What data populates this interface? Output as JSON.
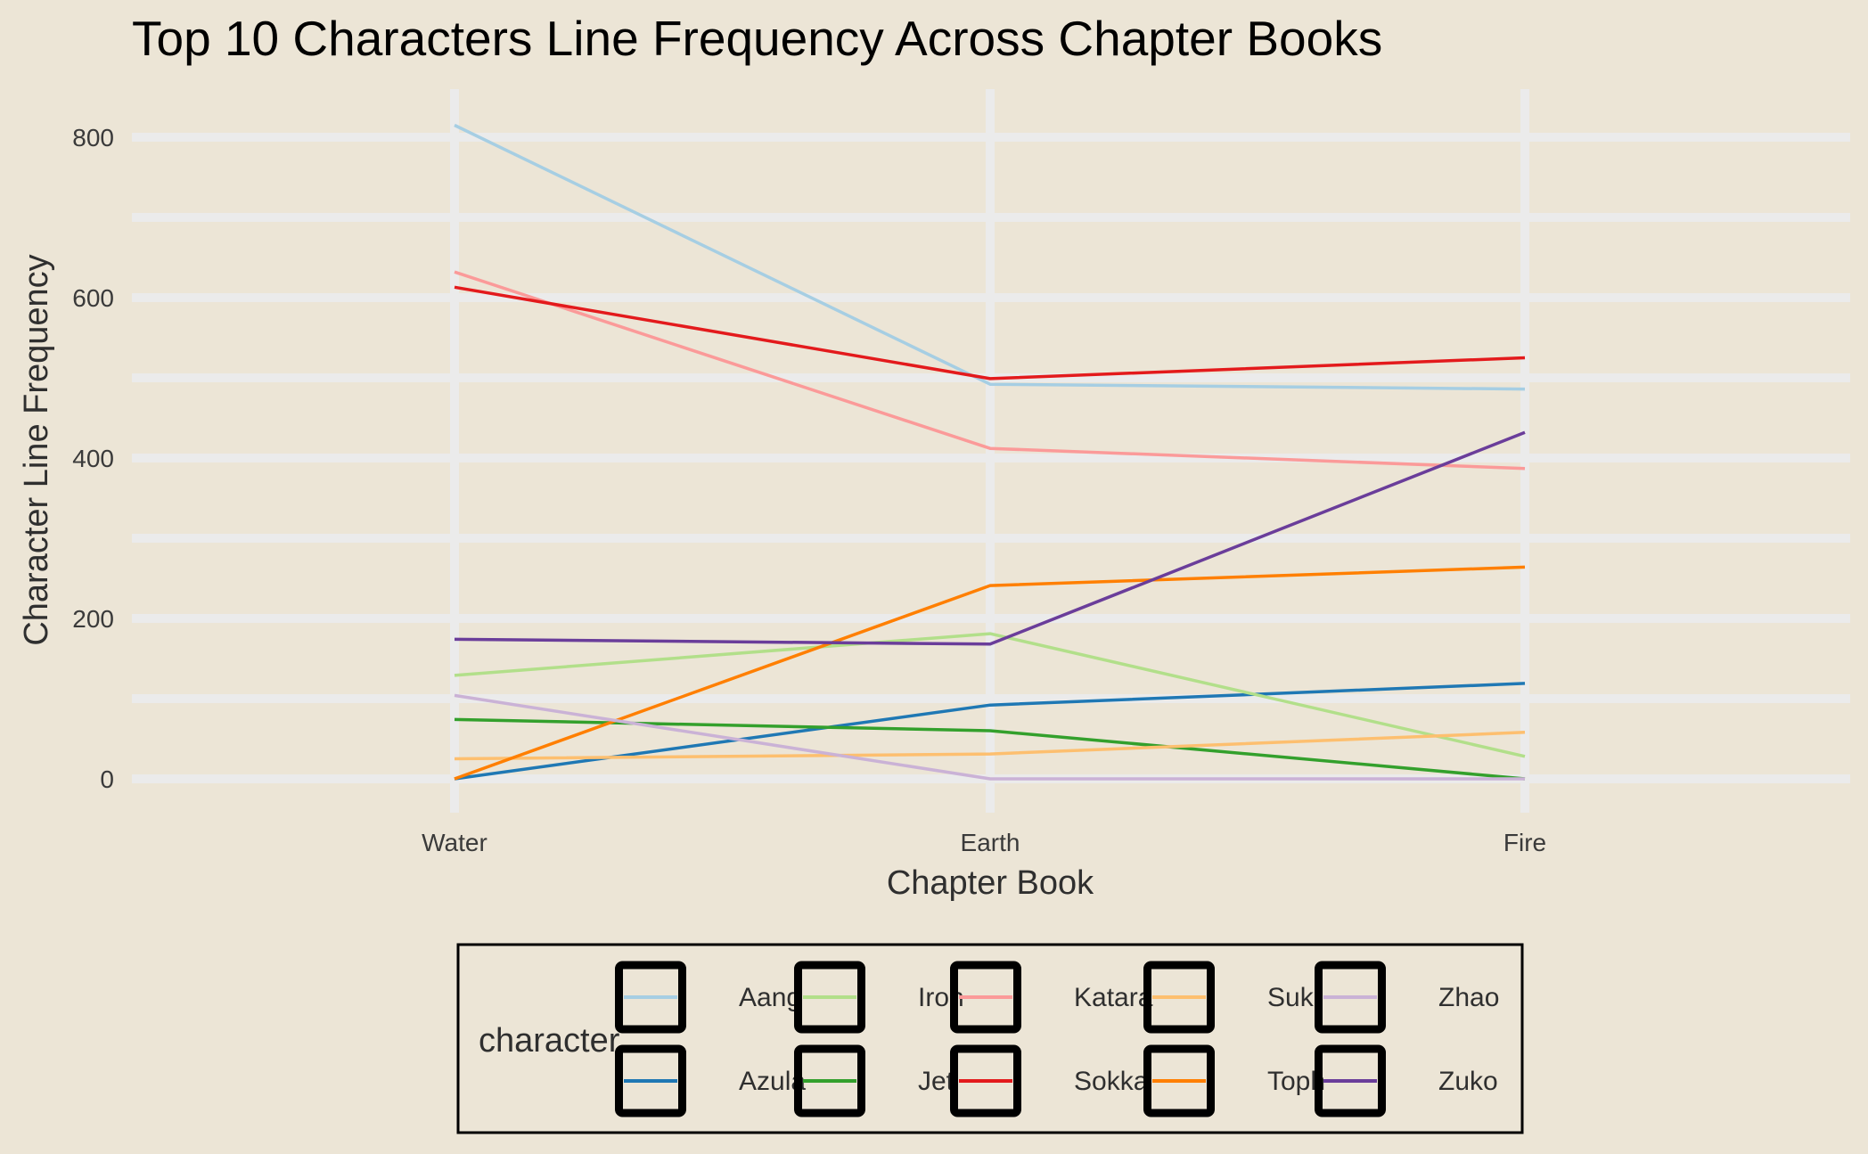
{
  "chart_data": {
    "type": "line",
    "title": "Top 10 Characters Line Frequency Across Chapter Books",
    "xlabel": "Chapter Book",
    "ylabel": "Character Line Frequency",
    "categories": [
      "Water",
      "Earth",
      "Fire"
    ],
    "ylim": [
      0,
      850
    ],
    "yticks": [
      0,
      200,
      400,
      600,
      800
    ],
    "grid": true,
    "legend": {
      "title": "character",
      "position": "bottom"
    },
    "series": [
      {
        "name": "Aang",
        "color": "#a6cee3",
        "values": [
          815,
          492,
          486
        ]
      },
      {
        "name": "Azula",
        "color": "#1f78b4",
        "values": [
          0,
          92,
          119
        ]
      },
      {
        "name": "Iroh",
        "color": "#b2df8a",
        "values": [
          129,
          181,
          28
        ]
      },
      {
        "name": "Jet",
        "color": "#33a02c",
        "values": [
          74,
          60,
          0
        ]
      },
      {
        "name": "Katara",
        "color": "#fb9a99",
        "values": [
          632,
          412,
          387
        ]
      },
      {
        "name": "Sokka",
        "color": "#e31a1c",
        "values": [
          613,
          499,
          525
        ]
      },
      {
        "name": "Suki",
        "color": "#fdbf6f",
        "values": [
          25,
          31,
          58
        ]
      },
      {
        "name": "Toph",
        "color": "#ff7f00",
        "values": [
          0,
          241,
          264
        ]
      },
      {
        "name": "Zhao",
        "color": "#cab2d6",
        "values": [
          104,
          0,
          0
        ]
      },
      {
        "name": "Zuko",
        "color": "#6a3d9a",
        "values": [
          174,
          168,
          432
        ]
      }
    ]
  }
}
